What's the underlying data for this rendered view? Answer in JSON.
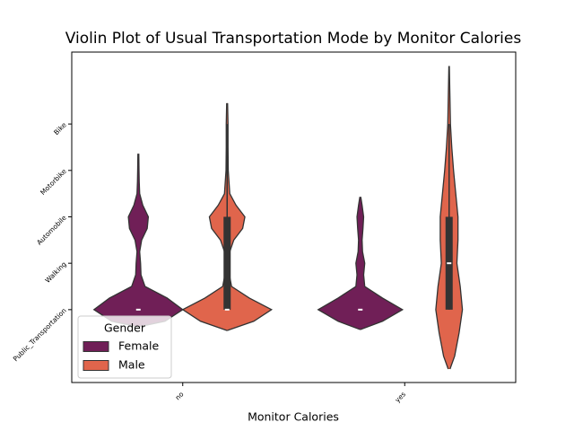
{
  "chart_data": {
    "type": "violin",
    "title": "Violin Plot of Usual Transportation Mode by Monitor Calories",
    "x_label": "Monitor Calories",
    "categories": [
      "no",
      "yes"
    ],
    "ylim": [
      5.55,
      -1.57
    ],
    "yticks": [
      {
        "value": 0,
        "label": "Public_Transportation"
      },
      {
        "value": 1,
        "label": "Walking"
      },
      {
        "value": 2,
        "label": "Automobile"
      },
      {
        "value": 3,
        "label": "Motorbike"
      },
      {
        "value": 4,
        "label": "Bike"
      }
    ],
    "legend": {
      "title": "Gender",
      "loc": "lower left"
    },
    "series": [
      {
        "name": "Female",
        "color": "#701f57",
        "violins": [
          {
            "y": [
              -0.37,
              -0.25,
              0,
              0.25,
              0.5,
              0.75,
              1,
              1.25,
              1.5,
              1.75,
              2,
              2.25,
              2.5,
              2.75,
              3,
              3.36
            ],
            "half_width": [
              0,
              0.12,
              0.2,
              0.13,
              0.03,
              0.012,
              0.01,
              0.006,
              0.015,
              0.04,
              0.045,
              0.02,
              0.006,
              0.004,
              0.003,
              0.002
            ],
            "box": {
              "q1": 0,
              "median": 0,
              "q3": 0,
              "whisker_low": 0,
              "whisker_high": 0
            }
          },
          {
            "y": [
              -0.43,
              -0.25,
              0,
              0.25,
              0.5,
              0.75,
              1,
              1.25,
              1.5,
              1.75,
              2,
              2.25,
              2.43
            ],
            "half_width": [
              0,
              0.1,
              0.19,
              0.1,
              0.02,
              0.015,
              0.02,
              0.01,
              0.008,
              0.012,
              0.015,
              0.008,
              0.002
            ],
            "box": {
              "q1": 0,
              "median": 0,
              "q3": 0,
              "whisker_low": 0,
              "whisker_high": 0
            }
          }
        ]
      },
      {
        "name": "Male",
        "color": "#e0654c",
        "violins": [
          {
            "y": [
              -0.45,
              -0.25,
              0,
              0.25,
              0.5,
              0.75,
              1,
              1.25,
              1.5,
              1.75,
              2,
              2.25,
              2.5,
              3,
              3.5,
              4,
              4.45
            ],
            "half_width": [
              0,
              0.12,
              0.2,
              0.1,
              0.02,
              0.01,
              0.01,
              0.012,
              0.03,
              0.07,
              0.08,
              0.04,
              0.012,
              0.005,
              0.004,
              0.004,
              0.002
            ],
            "box": {
              "q1": 0,
              "median": 0,
              "q3": 2,
              "whisker_low": 0,
              "whisker_high": 4
            }
          },
          {
            "y": [
              -1.28,
              -1,
              -0.5,
              0,
              0.5,
              1,
              1.5,
              2,
              2.5,
              3,
              3.5,
              4,
              4.5,
              5,
              5.25
            ],
            "half_width": [
              0.004,
              0.025,
              0.045,
              0.06,
              0.05,
              0.035,
              0.04,
              0.04,
              0.03,
              0.02,
              0.012,
              0.006,
              0.004,
              0.002,
              0.001
            ],
            "box": {
              "q1": 0,
              "median": 1,
              "q3": 2,
              "whisker_low": 0,
              "whisker_high": 4
            }
          }
        ]
      }
    ]
  }
}
